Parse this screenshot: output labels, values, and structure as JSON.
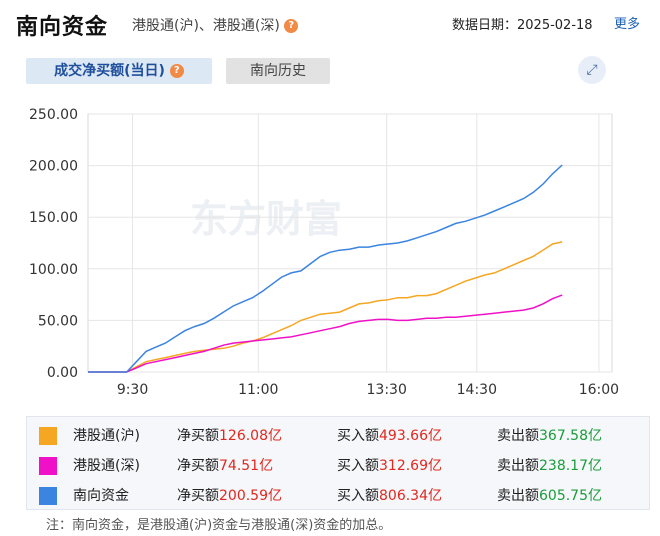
{
  "header": {
    "title": "南向资金",
    "subtitle": "港股通(沪)、港股通(深)",
    "date_label": "数据日期：2025-02-18",
    "more_label": "更多",
    "help_icon": "question-circle-icon"
  },
  "tabs": [
    {
      "label": "成交净买额(当日)",
      "active": true
    },
    {
      "label": "南向历史",
      "active": false
    }
  ],
  "expand_icon": "expand-arrows-icon",
  "watermark": "东方财富",
  "chart_data": {
    "type": "line",
    "x_ticks": [
      "9:30",
      "11:00",
      "13:30",
      "14:30",
      "16:00"
    ],
    "y_ticks": [
      "0.00",
      "50.00",
      "100.00",
      "150.00",
      "200.00",
      "250.00"
    ],
    "ylim": [
      0,
      250
    ],
    "series": [
      {
        "name": "港股通(沪)",
        "color": "#f5a623",
        "values": [
          0,
          0,
          0,
          0,
          0,
          5,
          10,
          12,
          14,
          16,
          18,
          20,
          21,
          22,
          23,
          25,
          28,
          30,
          33,
          37,
          41,
          45,
          50,
          53,
          56,
          57,
          58,
          62,
          66,
          67,
          69,
          70,
          72,
          72,
          74,
          74,
          76,
          80,
          84,
          88,
          91,
          94,
          96,
          100,
          104,
          108,
          112,
          118,
          124,
          126.08
        ]
      },
      {
        "name": "港股通(深)",
        "color": "#f010c8",
        "values": [
          0,
          0,
          0,
          0,
          0,
          4,
          8,
          10,
          12,
          14,
          16,
          18,
          20,
          23,
          26,
          28,
          29,
          30,
          31,
          32,
          33,
          34,
          36,
          38,
          40,
          42,
          44,
          47,
          49,
          50,
          51,
          51,
          50,
          50,
          51,
          52,
          52,
          53,
          53,
          54,
          55,
          56,
          57,
          58,
          59,
          60,
          62,
          66,
          71,
          74.51
        ]
      },
      {
        "name": "南向资金",
        "color": "#3b84e0",
        "values": [
          0,
          0,
          0,
          0,
          0,
          10,
          20,
          24,
          28,
          34,
          40,
          44,
          47,
          52,
          58,
          64,
          68,
          72,
          78,
          85,
          92,
          96,
          98,
          105,
          112,
          116,
          118,
          119,
          121,
          121,
          123,
          124,
          125,
          127,
          130,
          133,
          136,
          140,
          144,
          146,
          149,
          152,
          156,
          160,
          164,
          168,
          174,
          182,
          192,
          200.59
        ]
      }
    ]
  },
  "legend": [
    {
      "name": "港股通(沪)",
      "color": "#f5a623",
      "net_label": "净买额",
      "net_value": "126.08亿",
      "buy_label": "买入额",
      "buy_value": "493.66亿",
      "sell_label": "卖出额",
      "sell_value": "367.58亿"
    },
    {
      "name": "港股通(深)",
      "color": "#f010c8",
      "net_label": "净买额",
      "net_value": "74.51亿",
      "buy_label": "买入额",
      "buy_value": "312.69亿",
      "sell_label": "卖出额",
      "sell_value": "238.17亿"
    },
    {
      "name": "南向资金",
      "color": "#3b84e0",
      "net_label": "净买额",
      "net_value": "200.59亿",
      "buy_label": "买入额",
      "buy_value": "806.34亿",
      "sell_label": "卖出额",
      "sell_value": "605.75亿"
    }
  ],
  "note": "注：南向资金，是港股通(沪)资金与港股通(深)资金的加总。"
}
